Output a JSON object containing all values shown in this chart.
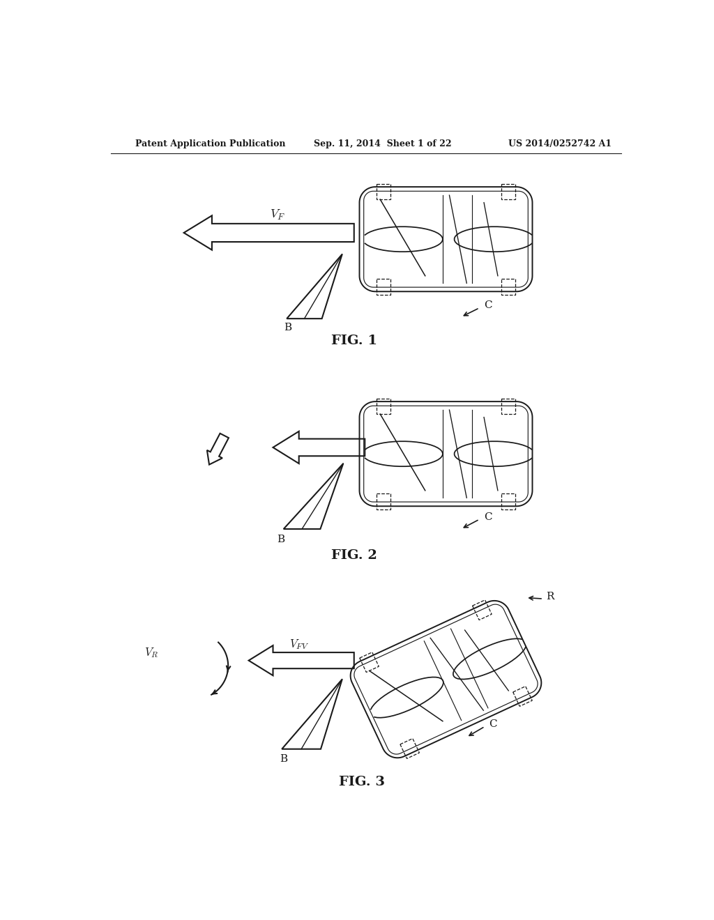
{
  "background_color": "#ffffff",
  "header_left": "Patent Application Publication",
  "header_center": "Sep. 11, 2014  Sheet 1 of 22",
  "header_right": "US 2014/0252742 A1",
  "header_fontsize": 9,
  "fig1_label": "FIG. 1",
  "fig2_label": "FIG. 2",
  "fig3_label": "FIG. 3",
  "label_fontsize": 14,
  "annotation_fontsize": 11
}
